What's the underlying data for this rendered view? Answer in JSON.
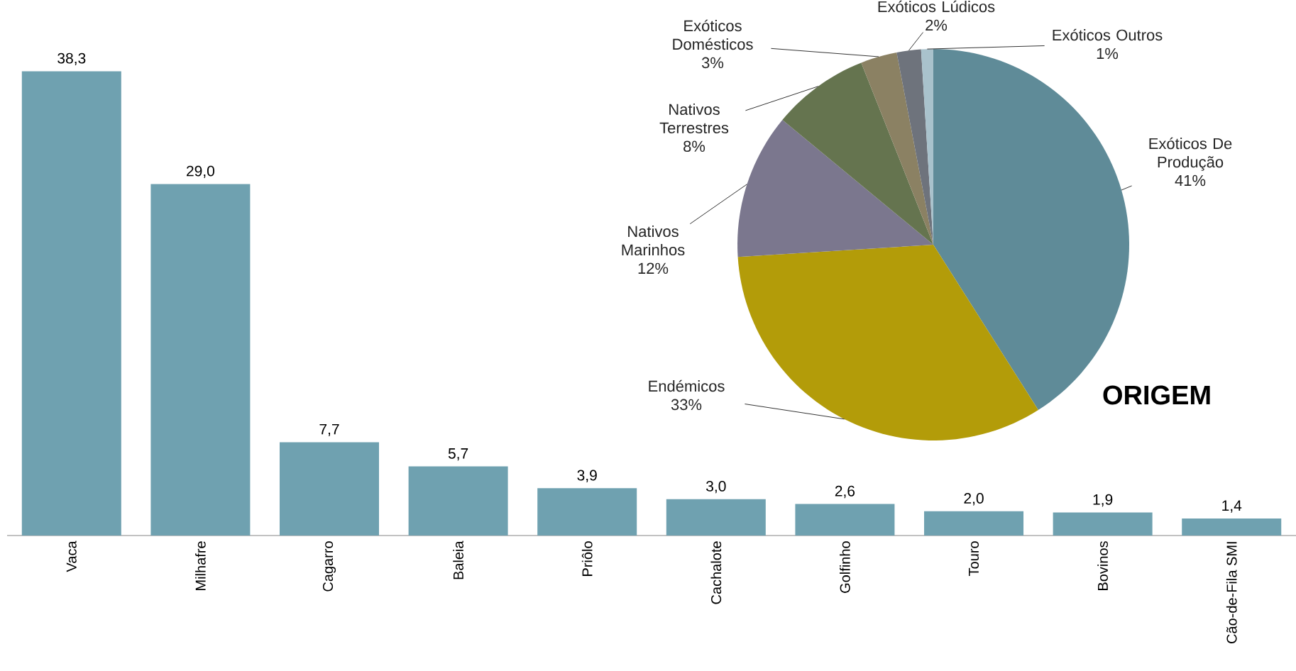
{
  "chart_data": [
    {
      "type": "bar",
      "categories": [
        "Vaca",
        "Milhafre",
        "Cagarro",
        "Baleia",
        "Priôlo",
        "Cachalote",
        "Golfinho",
        "Touro",
        "Bovinos",
        "Cão-de-Fila SMI"
      ],
      "values": [
        38.3,
        29.0,
        7.7,
        5.7,
        3.9,
        3.0,
        2.6,
        2.0,
        1.9,
        1.4
      ],
      "value_labels": [
        "38,3",
        "29,0",
        "7,7",
        "5,7",
        "3,9",
        "3,0",
        "2,6",
        "2,0",
        "1,9",
        "1,4"
      ],
      "color": "#6fa1b0"
    },
    {
      "type": "pie",
      "title": "ORIGEM",
      "categories": [
        "Exóticos De Produção",
        "Endémicos",
        "Nativos Marinhos",
        "Nativos Terrestres",
        "Exóticos Domésticos",
        "Exóticos Lúdicos",
        "Exóticos Outros"
      ],
      "values": [
        41,
        33,
        12,
        8,
        3,
        2,
        1
      ],
      "value_labels": [
        "41%",
        "33%",
        "12%",
        "8%",
        "3%",
        "2%",
        "1%"
      ],
      "colors": [
        "#5f8b98",
        "#b39c09",
        "#7b778e",
        "#65744f",
        "#8b8163",
        "#6e737c",
        "#a9c2cc"
      ]
    }
  ]
}
